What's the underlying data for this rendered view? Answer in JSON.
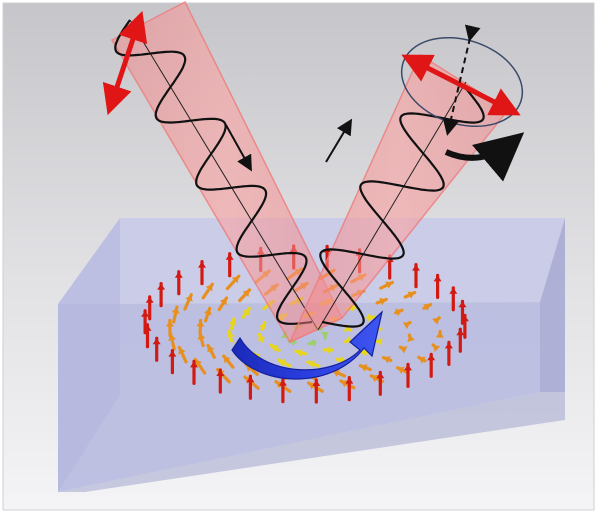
{
  "figure": {
    "description_icons": [
      "incident-beam",
      "reflected-beam",
      "skyrmion-slab",
      "polarization-arrow",
      "rotation-arrow"
    ],
    "colors": {
      "background_top": "#c9c9cd",
      "background_bottom": "#f2f2f4",
      "slab_top": "#c7c9e6",
      "slab_front": "#b7badb",
      "slab_side": "#a9acd2",
      "beam": "#f58a8a",
      "beam_edge": "#e86a6a",
      "wave": "#111111",
      "polarization": "#e01515",
      "curl_arrow": "#1f2fcf",
      "spin_outer": "#d21a12",
      "spin_mid": "#e7901f",
      "spin_inner": "#e8d51e",
      "spin_core": "#9bd06a"
    }
  }
}
